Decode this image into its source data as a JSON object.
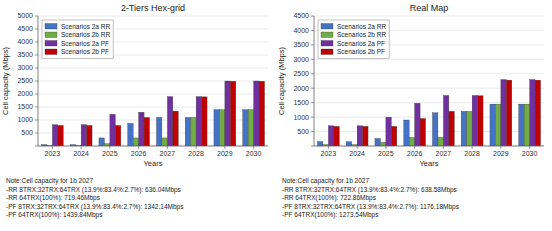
{
  "chart_data": [
    {
      "type": "bar",
      "title": "2-Tiers Hex-grid",
      "xlabel": "Years",
      "ylabel": "Cell capacity (Mbps)",
      "categories": [
        "2023",
        "2024",
        "2025",
        "2026",
        "2027",
        "2028",
        "2029",
        "2030"
      ],
      "series": [
        {
          "name": "Scenarios 2a RR",
          "color": "#4472C4",
          "values": [
            55,
            55,
            310,
            870,
            1100,
            1100,
            1400,
            1400
          ]
        },
        {
          "name": "Scenarios 2b RR",
          "color": "#70AD47",
          "values": [
            20,
            20,
            90,
            310,
            310,
            1100,
            1400,
            1400
          ]
        },
        {
          "name": "Scenarios 2a PF",
          "color": "#7030A0",
          "values": [
            820,
            820,
            1220,
            1300,
            1900,
            1900,
            2500,
            2500
          ]
        },
        {
          "name": "Scenarios 2b PF",
          "color": "#C00000",
          "values": [
            790,
            790,
            790,
            1100,
            1340,
            1890,
            2490,
            2490
          ]
        }
      ],
      "ylim": [
        0,
        5000
      ],
      "yticks": [
        {
          "value": 0,
          "label": null
        },
        500,
        1000,
        1500,
        2000,
        2500,
        3000,
        3500,
        4000,
        4500,
        5000
      ],
      "grid": true,
      "legend": "upper left",
      "annotations": [
        "Note:Cell capacity for 1b 2027",
        "-RR 8TRX:32TRX:64TRX (13.9%:83.4%:2.7%): 636.04Mbps",
        "-RR 64TRX(100%): 719.46Mbps",
        "-PF 8TRX:32TRX:64TRX (13.9%:83.4%:2.7%): 1342.14Mbps",
        "-PF 64TRX(100%): 1439.84Mbps"
      ]
    },
    {
      "type": "bar",
      "title": "Real Map",
      "xlabel": "Years",
      "ylabel": "Cell capacity (Mbps)",
      "categories": [
        "2023",
        "2024",
        "2025",
        "2026",
        "2027",
        "2028",
        "2029",
        "2030"
      ],
      "series": [
        {
          "name": "Scenarios 2a RR",
          "color": "#4472C4",
          "values": [
            150,
            150,
            260,
            900,
            1150,
            1200,
            1450,
            1450
          ]
        },
        {
          "name": "Scenarios 2b RR",
          "color": "#70AD47",
          "values": [
            50,
            50,
            130,
            300,
            300,
            1200,
            1450,
            1450
          ]
        },
        {
          "name": "Scenarios 2a PF",
          "color": "#7030A0",
          "values": [
            700,
            700,
            1000,
            1480,
            1750,
            1750,
            2300,
            2300
          ]
        },
        {
          "name": "Scenarios 2b PF",
          "color": "#C00000",
          "values": [
            680,
            680,
            680,
            950,
            1200,
            1740,
            2280,
            2280
          ]
        }
      ],
      "ylim": [
        0,
        4500
      ],
      "yticks": [
        {
          "value": 0,
          "label": null
        },
        500,
        1000,
        1500,
        2000,
        2500,
        3000,
        3500,
        4000,
        4500
      ],
      "grid": true,
      "legend": "upper left",
      "annotations": [
        "Note:Cell capacity for 1b 2027",
        "-RR 8TRX:32TRX:64TRX (13.9%:83.4%:2.7%): 638.58Mbps",
        "-RR 64TRX(100%): 722.86Mbps",
        "-PF 8TRX:32TRX:64TRX (13.9%:83.4%:2.7%): 1176.18Mbps",
        "-PF 64TRX(100%): 1273.54Mbps"
      ]
    }
  ]
}
